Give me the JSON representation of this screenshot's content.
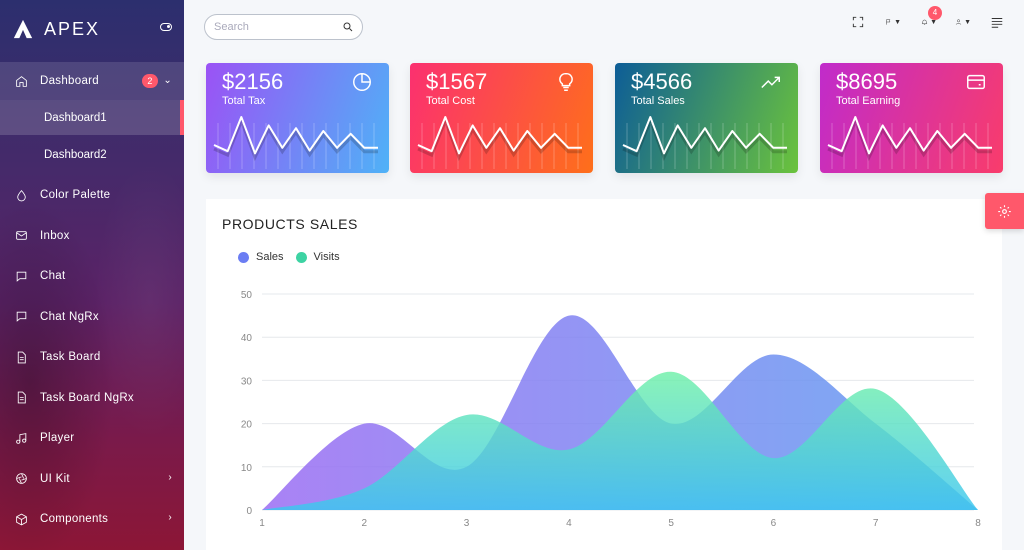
{
  "brand": {
    "name": "APEX"
  },
  "sidebar": {
    "items": [
      {
        "label": "Dashboard",
        "badge": "2",
        "icon": "home-icon"
      },
      {
        "label": "Color Palette",
        "icon": "droplet-icon"
      },
      {
        "label": "Inbox",
        "icon": "mail-icon"
      },
      {
        "label": "Chat",
        "icon": "message-square-icon"
      },
      {
        "label": "Chat NgRx",
        "icon": "message-square-icon"
      },
      {
        "label": "Task Board",
        "icon": "file-text-icon"
      },
      {
        "label": "Task Board NgRx",
        "icon": "file-text-icon"
      },
      {
        "label": "Player",
        "icon": "music-icon"
      },
      {
        "label": "UI Kit",
        "icon": "aperture-icon"
      },
      {
        "label": "Components",
        "icon": "box-icon"
      }
    ],
    "subitems": [
      {
        "label": "Dashboard1",
        "active": true
      },
      {
        "label": "Dashboard2",
        "active": false
      }
    ]
  },
  "topbar": {
    "search_placeholder": "Search",
    "notifications_count": "4"
  },
  "cards": [
    {
      "value": "$2156",
      "label": "Total Tax",
      "icon": "pie-chart-icon",
      "gradient": [
        "#9b52f5",
        "#4fb2f7"
      ],
      "spark": [
        1,
        0.78,
        2,
        0.7,
        1.7,
        0.9,
        1.6,
        0.8,
        1.5,
        0.9,
        1.4,
        0.9,
        0.9
      ]
    },
    {
      "value": "$1567",
      "label": "Total Cost",
      "icon": "lightbulb-icon",
      "gradient": [
        "#fb3070",
        "#fe6f1a"
      ],
      "spark": [
        1,
        0.78,
        2,
        0.7,
        1.7,
        0.9,
        1.6,
        0.8,
        1.5,
        0.9,
        1.4,
        0.9,
        0.9
      ]
    },
    {
      "value": "$4566",
      "label": "Total Sales",
      "icon": "trending-up-icon",
      "gradient": [
        "#0d5d97",
        "#6bc33c"
      ],
      "spark": [
        1,
        0.78,
        2,
        0.7,
        1.7,
        0.9,
        1.6,
        0.8,
        1.5,
        0.9,
        1.4,
        0.9,
        0.9
      ]
    },
    {
      "value": "$8695",
      "label": "Total Earning",
      "icon": "wallet-icon",
      "gradient": [
        "#c02bcb",
        "#f93c6b"
      ],
      "spark": [
        1,
        0.78,
        2,
        0.7,
        1.7,
        0.9,
        1.6,
        0.8,
        1.5,
        0.9,
        1.4,
        0.9,
        0.9
      ]
    }
  ],
  "products": {
    "title": "PRODUCTS SALES",
    "legend": [
      {
        "name": "Sales",
        "color": "#6b7df3"
      },
      {
        "name": "Visits",
        "color": "#3dd3a3"
      }
    ]
  },
  "chart_data": {
    "type": "area",
    "x": [
      1,
      2,
      3,
      4,
      5,
      6,
      7,
      8
    ],
    "series": [
      {
        "name": "Sales",
        "values": [
          0,
          20,
          10,
          45,
          20,
          36,
          20,
          0
        ]
      },
      {
        "name": "Visits",
        "values": [
          0,
          5,
          22,
          14,
          32,
          12,
          28,
          0
        ]
      }
    ],
    "ylim": [
      0,
      50
    ],
    "yticks": [
      0,
      10,
      20,
      30,
      40,
      50
    ],
    "grid": true,
    "legend_position": "top-left"
  }
}
